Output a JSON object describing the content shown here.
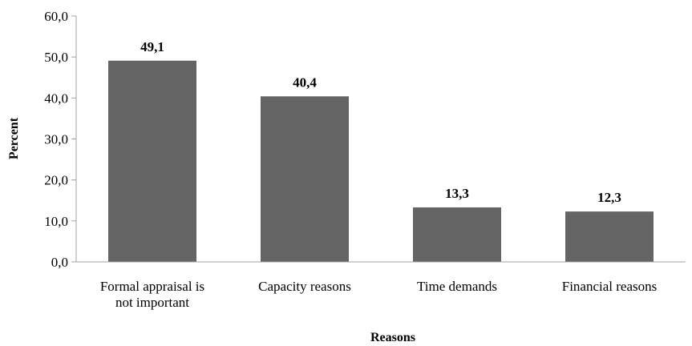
{
  "chart_data": {
    "type": "bar",
    "categories": [
      [
        "Formal appraisal is",
        "not important"
      ],
      [
        "Capacity reasons"
      ],
      [
        "Time demands"
      ],
      [
        "Financial reasons"
      ]
    ],
    "values": [
      49.1,
      40.4,
      13.3,
      12.3
    ],
    "data_labels": [
      "49,1",
      "40,4",
      "13,3",
      "12,3"
    ],
    "title": "",
    "xlabel": "Reasons",
    "ylabel": "Percent",
    "ylim": [
      0,
      60
    ],
    "yticks": [
      0,
      10,
      20,
      30,
      40,
      50,
      60
    ],
    "ytick_labels": [
      "0,0",
      "10,0",
      "20,0",
      "30,0",
      "40,0",
      "50,0",
      "60,0"
    ],
    "grid": false,
    "legend": "none",
    "bar_color": "#646464",
    "axis_color": "#a0a0a0"
  }
}
